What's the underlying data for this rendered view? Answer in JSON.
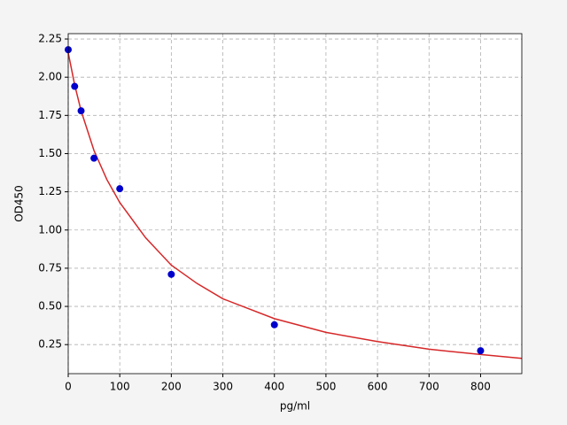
{
  "chart_data": {
    "type": "scatter",
    "x_label": "pg/ml",
    "y_label": "OD450",
    "xlim": [
      0,
      880
    ],
    "ylim": [
      0.06,
      2.285
    ],
    "xticks": [
      0,
      100,
      200,
      300,
      400,
      500,
      600,
      700,
      800
    ],
    "yticks": [
      0.25,
      {
        "value": 0.5,
        "label": "0.50"
      },
      0.75,
      {
        "value": 1,
        "label": "1.00"
      },
      1.25,
      {
        "value": 1.5,
        "label": "1.50"
      },
      1.75,
      {
        "value": 2,
        "label": "2.00"
      },
      2.25
    ],
    "grid": true,
    "series": [
      {
        "type": "line",
        "color": "#d62728",
        "x": [
          0,
          12.5,
          25,
          50,
          75,
          100,
          150,
          200,
          250,
          300,
          400,
          500,
          600,
          700,
          800,
          880
        ],
        "values": [
          2.16,
          1.95,
          1.78,
          1.52,
          1.33,
          1.18,
          0.95,
          0.77,
          0.65,
          0.55,
          0.42,
          0.33,
          0.27,
          0.22,
          0.185,
          0.16
        ]
      },
      {
        "type": "scatter",
        "color": "#0000cc",
        "x": [
          0,
          12.5,
          25,
          50,
          100,
          200,
          400,
          800
        ],
        "values": [
          2.18,
          1.94,
          1.78,
          1.47,
          1.27,
          0.71,
          0.38,
          0.21
        ]
      }
    ]
  }
}
